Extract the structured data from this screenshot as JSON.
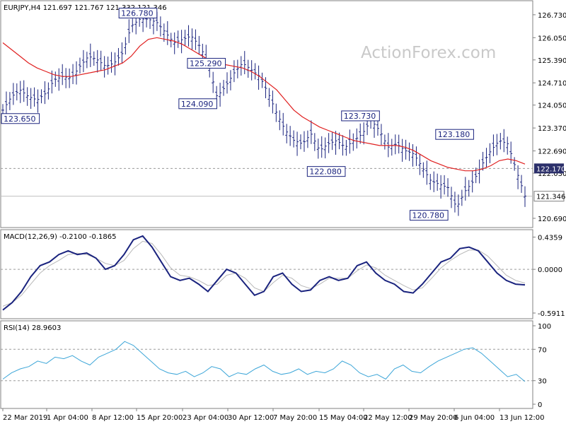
{
  "chart_data": [
    {
      "type": "candlestick",
      "title": "EURJPY,H4  121.697 121.767 121.332 121.346",
      "watermark": "ActionForex.com",
      "ylim": [
        120.5,
        127.0
      ],
      "ticks": [
        "126.730",
        "126.050",
        "125.390",
        "124.710",
        "124.050",
        "123.370",
        "122.690",
        "122.030",
        "120.690"
      ],
      "tick_values": [
        126.73,
        126.05,
        125.39,
        124.71,
        124.05,
        123.37,
        122.69,
        122.03,
        120.69
      ],
      "current_price": "121.346",
      "current_value": 121.346,
      "level_price": "122.170",
      "level_value": 122.17,
      "ma_color": "#e02020",
      "price_color": "#1a237e",
      "ma_series": [
        125.9,
        125.7,
        125.5,
        125.3,
        125.15,
        125.05,
        124.95,
        124.9,
        124.9,
        124.95,
        125.0,
        125.05,
        125.1,
        125.2,
        125.3,
        125.5,
        125.8,
        126.0,
        126.05,
        126.0,
        125.95,
        125.85,
        125.7,
        125.55,
        125.4,
        125.3,
        125.25,
        125.2,
        125.15,
        125.05,
        124.9,
        124.7,
        124.5,
        124.2,
        123.9,
        123.7,
        123.55,
        123.4,
        123.3,
        123.2,
        123.1,
        123.0,
        122.95,
        122.9,
        122.85,
        122.85,
        122.85,
        122.8,
        122.7,
        122.55,
        122.4,
        122.3,
        122.2,
        122.15,
        122.1,
        122.1,
        122.15,
        122.25,
        122.4,
        122.45,
        122.4,
        122.3
      ],
      "close_series": [
        123.9,
        124.3,
        124.5,
        124.3,
        124.2,
        124.4,
        124.8,
        124.9,
        124.85,
        125.2,
        125.5,
        125.4,
        125.2,
        125.3,
        125.6,
        126.4,
        126.6,
        126.6,
        126.5,
        126.2,
        125.9,
        126.0,
        126.1,
        125.8,
        125.3,
        124.3,
        124.6,
        125.0,
        125.3,
        125.1,
        124.9,
        124.4,
        123.8,
        123.3,
        123.0,
        122.9,
        123.2,
        122.7,
        122.9,
        123.0,
        122.8,
        123.0,
        123.2,
        123.6,
        123.3,
        122.8,
        122.9,
        122.7,
        122.6,
        122.2,
        121.8,
        121.7,
        121.6,
        121.0,
        121.5,
        121.8,
        122.3,
        122.7,
        123.0,
        122.9,
        122.1,
        121.35
      ],
      "annotations": [
        {
          "text": "126.780",
          "price": 126.78,
          "col": 18,
          "side": "left"
        },
        {
          "text": "125.290",
          "price": 125.29,
          "col": 26,
          "side": "left"
        },
        {
          "text": "124.090",
          "price": 124.09,
          "col": 25,
          "side": "left"
        },
        {
          "text": "123.650",
          "price": 123.65,
          "col": 0,
          "side": "left"
        },
        {
          "text": "123.730",
          "price": 123.73,
          "col": 44,
          "side": "left"
        },
        {
          "text": "122.080",
          "price": 122.08,
          "col": 40,
          "side": "left"
        },
        {
          "text": "123.180",
          "price": 123.18,
          "col": 55,
          "side": "left"
        },
        {
          "text": "120.780",
          "price": 120.78,
          "col": 52,
          "side": "left"
        }
      ]
    },
    {
      "type": "line",
      "title": "MACD(12,26,9) -0.2100 -0.1865",
      "ylim": [
        -0.62,
        0.46
      ],
      "ticks": [
        "0.4359",
        "0.0000",
        "-0.5911"
      ],
      "tick_values": [
        0.4359,
        0.0,
        -0.5911
      ],
      "zero_label": "0.00",
      "macd": [
        -0.55,
        -0.45,
        -0.3,
        -0.1,
        0.05,
        0.1,
        0.2,
        0.25,
        0.2,
        0.22,
        0.15,
        0.0,
        0.05,
        0.2,
        0.4,
        0.45,
        0.3,
        0.1,
        -0.1,
        -0.15,
        -0.12,
        -0.2,
        -0.3,
        -0.15,
        0.0,
        -0.05,
        -0.2,
        -0.35,
        -0.3,
        -0.1,
        -0.05,
        -0.2,
        -0.3,
        -0.28,
        -0.15,
        -0.1,
        -0.15,
        -0.12,
        0.05,
        0.1,
        -0.05,
        -0.15,
        -0.2,
        -0.3,
        -0.32,
        -0.2,
        -0.05,
        0.1,
        0.15,
        0.28,
        0.3,
        0.25,
        0.1,
        -0.05,
        -0.15,
        -0.2,
        -0.21
      ],
      "signal": [
        -0.5,
        -0.45,
        -0.35,
        -0.2,
        -0.05,
        0.05,
        0.12,
        0.2,
        0.22,
        0.2,
        0.15,
        0.08,
        0.05,
        0.12,
        0.28,
        0.38,
        0.35,
        0.2,
        0.02,
        -0.08,
        -0.1,
        -0.15,
        -0.22,
        -0.2,
        -0.08,
        -0.05,
        -0.12,
        -0.25,
        -0.3,
        -0.18,
        -0.08,
        -0.12,
        -0.22,
        -0.26,
        -0.2,
        -0.12,
        -0.12,
        -0.12,
        -0.02,
        0.06,
        0.02,
        -0.08,
        -0.15,
        -0.22,
        -0.28,
        -0.25,
        -0.12,
        0.02,
        0.12,
        0.2,
        0.26,
        0.26,
        0.18,
        0.05,
        -0.08,
        -0.15,
        -0.1865
      ]
    },
    {
      "type": "line",
      "title": "RSI(14) 28.9603",
      "ylim": [
        0,
        100
      ],
      "ticks": [
        "100",
        "70",
        "30",
        "0"
      ],
      "tick_values": [
        100,
        70,
        30,
        0
      ],
      "rsi": [
        32,
        40,
        45,
        48,
        55,
        52,
        60,
        58,
        62,
        55,
        50,
        60,
        65,
        70,
        80,
        75,
        65,
        55,
        45,
        40,
        38,
        42,
        35,
        40,
        48,
        45,
        35,
        40,
        38,
        45,
        50,
        42,
        38,
        40,
        45,
        38,
        42,
        40,
        45,
        55,
        50,
        40,
        35,
        38,
        32,
        45,
        50,
        42,
        40,
        48,
        55,
        60,
        65,
        70,
        72,
        65,
        55,
        45,
        35,
        38,
        28.96
      ]
    },
    {
      "type": "axis",
      "x_labels": [
        "22 Mar 2019",
        "1 Apr 04:00",
        "8 Apr 12:00",
        "15 Apr 20:00",
        "23 Apr 04:00",
        "30 Apr 12:00",
        "7 May 20:00",
        "15 May 04:00",
        "22 May 12:00",
        "29 May 20:00",
        "6 Jun 04:00",
        "13 Jun 12:00"
      ]
    }
  ],
  "colors": {
    "frame": "#808080",
    "dashed": "#9a9a9a",
    "macd_signal": "#b8b8b8",
    "rsi_line": "#3da6d8",
    "label_box": "#1a237e"
  }
}
